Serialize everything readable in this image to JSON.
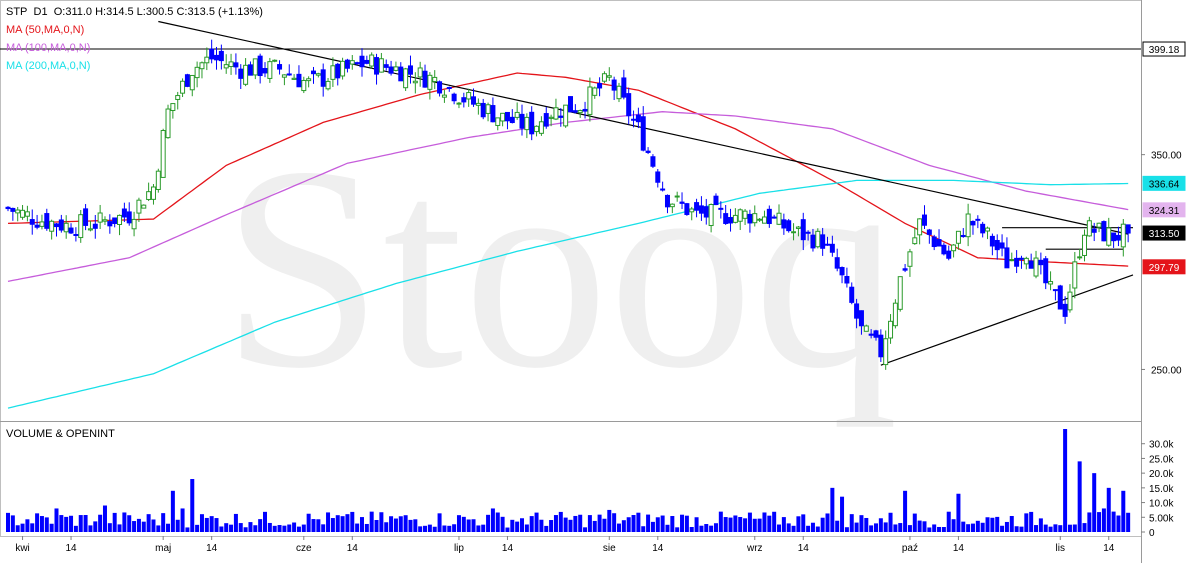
{
  "header": {
    "symbol": "STP",
    "interval": "D1",
    "ohlc": "O:311.0  H:314.5  L:300.5  C:313.5  (+1.13%)"
  },
  "legend": [
    {
      "label": "MA (50,MA,0,N)",
      "color": "#e4141a"
    },
    {
      "label": "MA (100,MA,0,N)",
      "color": "#c65ddb"
    },
    {
      "label": "MA (200,MA,0,N)",
      "color": "#19e0e8"
    }
  ],
  "watermark": "Stooq",
  "volume_panel": {
    "title": "VOLUME & OPENINT"
  },
  "colors": {
    "up": "#2a9a2a",
    "down": "#0000ff",
    "ma50": "#e4141a",
    "ma100": "#c65ddb",
    "ma200": "#19e0e8",
    "trendline": "#000000",
    "axis": "#808080"
  },
  "chart_data": [
    {
      "type": "candlestick",
      "title": "STP D1",
      "y_axis_labels": [
        "350.00",
        "250.00"
      ],
      "ylim": [
        226,
        422
      ],
      "price_markers": [
        {
          "value": 399.18,
          "label": "399.18",
          "bg": "#ffffff",
          "fg": "#000000"
        },
        {
          "value": 336.64,
          "label": "336.64",
          "bg": "#19e0e8",
          "fg": "#000000"
        },
        {
          "value": 324.31,
          "label": "324.31",
          "bg": "#e3b4ee",
          "fg": "#000000"
        },
        {
          "value": 313.5,
          "label": "313.50",
          "bg": "#000000",
          "fg": "#ffffff"
        },
        {
          "value": 297.79,
          "label": "297.79",
          "bg": "#e4141a",
          "fg": "#ffffff"
        }
      ],
      "horizontal_lines": [
        399.18
      ],
      "x_tick_labels": [
        "kwi",
        "14",
        "maj",
        "14",
        "cze",
        "14",
        "lip",
        "14",
        "sie",
        "14",
        "wrz",
        "14",
        "paź",
        "14",
        "lis",
        "14"
      ],
      "x_tick_bars": [
        3,
        13,
        32,
        42,
        61,
        71,
        93,
        103,
        124,
        134,
        154,
        164,
        186,
        196,
        217,
        227
      ],
      "bars": 232,
      "anchors": [
        [
          0,
          325
        ],
        [
          6,
          320
        ],
        [
          12,
          317
        ],
        [
          18,
          318
        ],
        [
          25,
          322
        ],
        [
          30,
          335
        ],
        [
          33,
          370
        ],
        [
          38,
          390
        ],
        [
          42,
          395
        ],
        [
          48,
          390
        ],
        [
          56,
          390
        ],
        [
          62,
          383
        ],
        [
          68,
          388
        ],
        [
          74,
          393
        ],
        [
          80,
          390
        ],
        [
          88,
          385
        ],
        [
          95,
          375
        ],
        [
          102,
          367
        ],
        [
          108,
          363
        ],
        [
          112,
          370
        ],
        [
          118,
          373
        ],
        [
          124,
          385
        ],
        [
          130,
          362
        ],
        [
          136,
          330
        ],
        [
          142,
          322
        ],
        [
          148,
          322
        ],
        [
          156,
          322
        ],
        [
          162,
          314
        ],
        [
          168,
          310
        ],
        [
          172,
          292
        ],
        [
          176,
          268
        ],
        [
          180,
          258
        ],
        [
          184,
          292
        ],
        [
          188,
          318
        ],
        [
          194,
          302
        ],
        [
          198,
          320
        ],
        [
          202,
          312
        ],
        [
          206,
          300
        ],
        [
          210,
          306
        ],
        [
          215,
          286
        ],
        [
          218,
          278
        ],
        [
          222,
          316
        ],
        [
          228,
          312
        ],
        [
          231,
          313.5
        ]
      ],
      "volume_ylim": [
        0,
        35000
      ],
      "volume_axis_labels": [
        "30.0k",
        "25.0k",
        "20.0k",
        "15.0k",
        "10.0k",
        "5.00k",
        "0"
      ],
      "volume_axis_values": [
        30000,
        25000,
        20000,
        15000,
        10000,
        5000,
        0
      ],
      "volume_spikes": [
        [
          34,
          14000
        ],
        [
          38,
          18000
        ],
        [
          36,
          8000
        ],
        [
          20,
          9000
        ],
        [
          10,
          8000
        ],
        [
          100,
          8000
        ],
        [
          124,
          7500
        ],
        [
          170,
          15000
        ],
        [
          172,
          12000
        ],
        [
          185,
          14000
        ],
        [
          196,
          13000
        ],
        [
          218,
          35000
        ],
        [
          221,
          24000
        ],
        [
          224,
          20000
        ],
        [
          227,
          15000
        ],
        [
          230,
          14000
        ],
        [
          226,
          8000
        ]
      ],
      "trendlines": [
        {
          "from": [
            31,
            412
          ],
          "to": [
            231,
            313
          ]
        },
        {
          "from": [
            180,
            252
          ],
          "to": [
            232,
            294
          ]
        },
        {
          "from": [
            205,
            316
          ],
          "to": [
            232,
            316
          ]
        },
        {
          "from": [
            214,
            306
          ],
          "to": [
            230,
            306
          ]
        }
      ],
      "moving_averages": [
        {
          "name": "MA (50,MA,0,N)",
          "anchors": [
            [
              0,
              318
            ],
            [
              30,
              320
            ],
            [
              45,
              345
            ],
            [
              65,
              365
            ],
            [
              85,
              378
            ],
            [
              105,
              388
            ],
            [
              115,
              386
            ],
            [
              130,
              380
            ],
            [
              150,
              362
            ],
            [
              170,
              338
            ],
            [
              185,
              318
            ],
            [
              200,
              302
            ],
            [
              215,
              300
            ],
            [
              232,
              298
            ]
          ]
        },
        {
          "name": "MA (100,MA,0,N)",
          "anchors": [
            [
              0,
              291
            ],
            [
              25,
              302
            ],
            [
              45,
              322
            ],
            [
              70,
              346
            ],
            [
              95,
              358
            ],
            [
              115,
              365
            ],
            [
              135,
              370
            ],
            [
              150,
              368
            ],
            [
              170,
              362
            ],
            [
              190,
              345
            ],
            [
              210,
              333
            ],
            [
              232,
              324
            ]
          ]
        },
        {
          "name": "MA (200,MA,0,N)",
          "anchors": [
            [
              0,
              232
            ],
            [
              30,
              248
            ],
            [
              55,
              272
            ],
            [
              80,
              290
            ],
            [
              105,
              305
            ],
            [
              130,
              318
            ],
            [
              155,
              332
            ],
            [
              175,
              338
            ],
            [
              195,
              338
            ],
            [
              215,
              336
            ],
            [
              232,
              336.6
            ]
          ]
        }
      ]
    }
  ]
}
